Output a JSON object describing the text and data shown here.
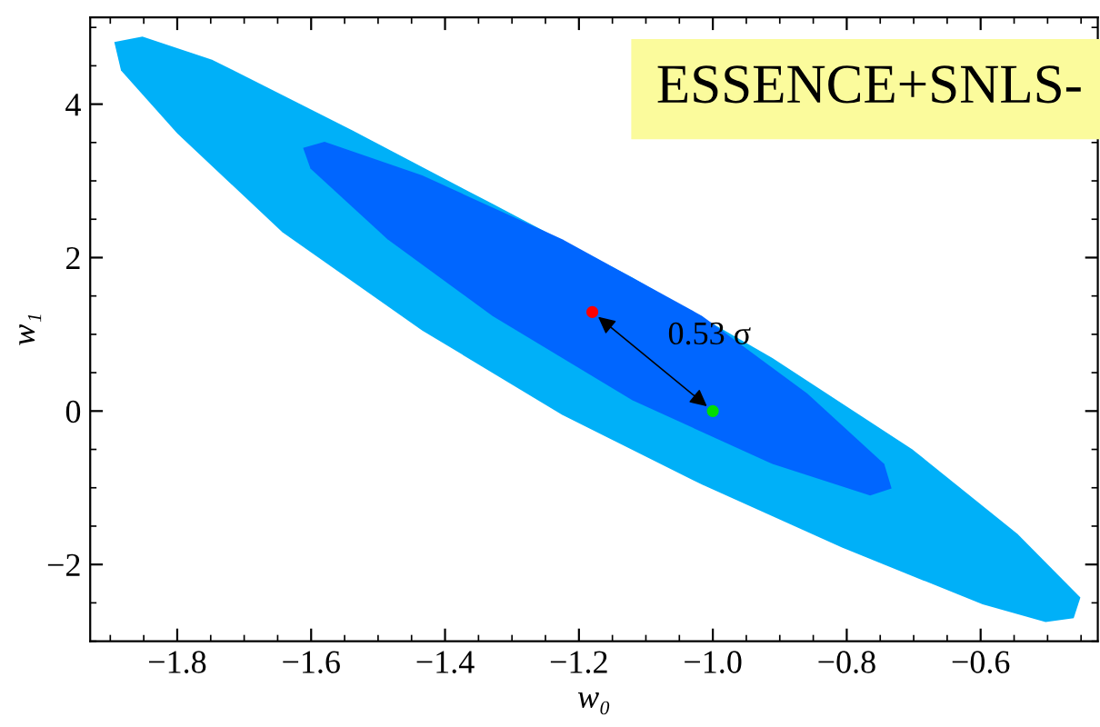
{
  "chart_data": {
    "type": "area",
    "xlabel": "w₀",
    "ylabel": "w₁",
    "xlim": [
      -1.93,
      -0.425
    ],
    "ylim": [
      -3,
      5.13
    ],
    "xticks": [
      {
        "value": -1.8,
        "label": "−1.8"
      },
      {
        "value": -1.6,
        "label": "−1.6"
      },
      {
        "value": -1.4,
        "label": "−1.4"
      },
      {
        "value": -1.2,
        "label": "−1.2"
      },
      {
        "value": -1.0,
        "label": "−1.0"
      },
      {
        "value": -0.8,
        "label": "−0.8"
      },
      {
        "value": -0.6,
        "label": "−0.6"
      }
    ],
    "yticks": [
      {
        "value": -2,
        "label": "−2"
      },
      0,
      2,
      4
    ],
    "grid": false,
    "series": [
      {
        "color": "#00b0f8",
        "x": [
          -1.894,
          -1.852,
          -1.748,
          -1.539,
          -1.329,
          -1.12,
          -0.911,
          -0.702,
          -0.545,
          -0.451,
          -0.461,
          -0.503,
          -0.597,
          -0.807,
          -1.016,
          -1.225,
          -1.434,
          -1.643,
          -1.8,
          -1.884
        ],
        "values": [
          4.81,
          4.88,
          4.58,
          3.66,
          2.7,
          1.74,
          0.69,
          -0.5,
          -1.6,
          -2.43,
          -2.7,
          -2.75,
          -2.52,
          -1.78,
          -0.96,
          -0.05,
          1.05,
          2.33,
          3.62,
          4.44
        ]
      },
      {
        "color": "#0066ff",
        "x": [
          -1.612,
          -1.58,
          -1.434,
          -1.225,
          -1.016,
          -0.859,
          -0.744,
          -0.733,
          -0.765,
          -0.911,
          -1.12,
          -1.329,
          -1.486,
          -1.601
        ],
        "values": [
          3.43,
          3.51,
          3.07,
          2.24,
          1.24,
          0.23,
          -0.69,
          -1.01,
          -1.1,
          -0.69,
          0.14,
          1.24,
          2.24,
          3.16
        ]
      },
      {
        "type": "scatter",
        "color": "#ff0000",
        "x": [
          -1.18
        ],
        "values": [
          1.29
        ]
      },
      {
        "type": "scatter",
        "color": "#00dd00",
        "x": [
          -1.0
        ],
        "values": [
          0.0
        ]
      }
    ],
    "annotations": [
      "0.53 σ",
      "ESSENCE+SNLS-"
    ]
  }
}
